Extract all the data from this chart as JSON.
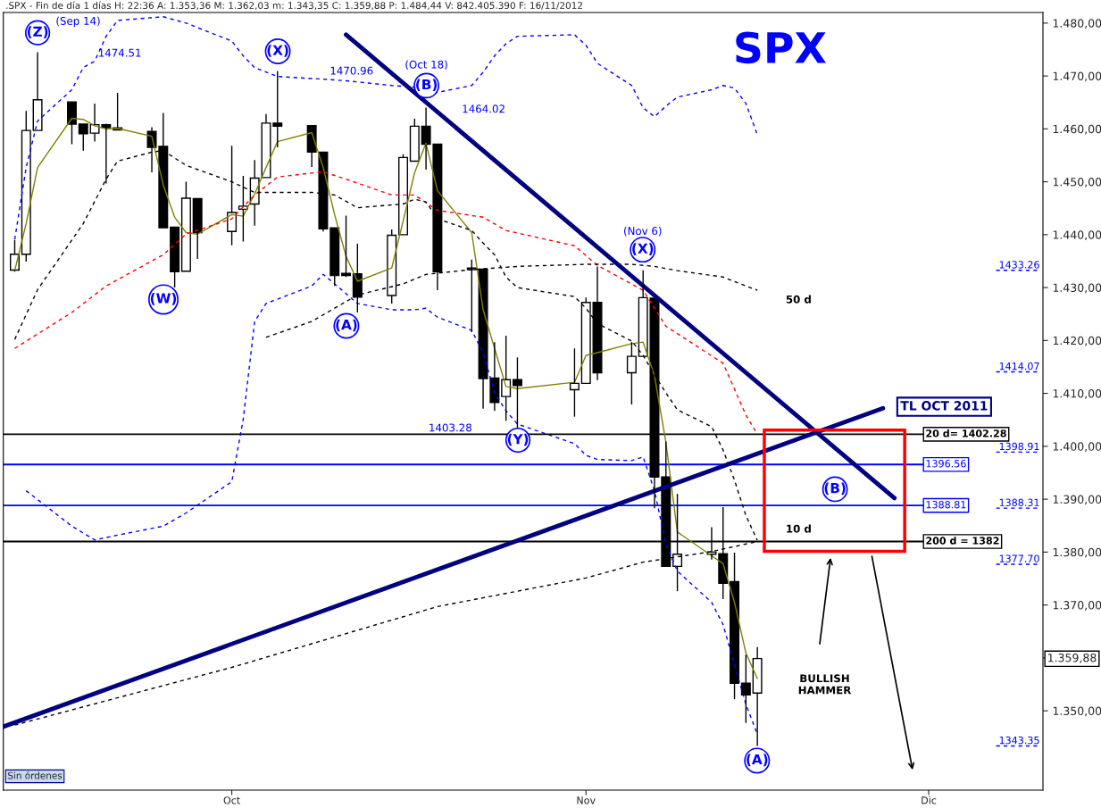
{
  "chart_data": {
    "type": "candlestick",
    "title": "SPX",
    "subtitle": ".SPX - Fin de día 1 días H: 22:36 A: 1.353,36 M: 1.362,03 m: 1.343,35 C: 1.359,88 P: 1.484,44 V: 842.405.390 F: 16/11/2012",
    "color": "#000000",
    "x": [
      "2012-09-12",
      "2012-09-13",
      "2012-09-14",
      "2012-09-17",
      "2012-09-18",
      "2012-09-19",
      "2012-09-20",
      "2012-09-21",
      "2012-09-24",
      "2012-09-25",
      "2012-09-26",
      "2012-09-27",
      "2012-09-28",
      "2012-10-01",
      "2012-10-02",
      "2012-10-03",
      "2012-10-04",
      "2012-10-05",
      "2012-10-08",
      "2012-10-09",
      "2012-10-10",
      "2012-10-11",
      "2012-10-12",
      "2012-10-15",
      "2012-10-16",
      "2012-10-17",
      "2012-10-18",
      "2012-10-19",
      "2012-10-22",
      "2012-10-23",
      "2012-10-24",
      "2012-10-25",
      "2012-10-26",
      "2012-10-31",
      "2012-11-01",
      "2012-11-02",
      "2012-11-05",
      "2012-11-06",
      "2012-11-07",
      "2012-11-08",
      "2012-11-09",
      "2012-11-12",
      "2012-11-13",
      "2012-11-14",
      "2012-11-15",
      "2012-11-16"
    ],
    "ohlc": [
      [
        1433.3,
        1439.0,
        1433.0,
        1436.3
      ],
      [
        1436.3,
        1463.4,
        1434.9,
        1459.7
      ],
      [
        1459.7,
        1474.51,
        1459.7,
        1465.5
      ],
      [
        1465.1,
        1465.1,
        1457.1,
        1460.9
      ],
      [
        1460.9,
        1460.9,
        1455.9,
        1459.1
      ],
      [
        1459.2,
        1464.8,
        1457.6,
        1460.8
      ],
      [
        1460.8,
        1461.0,
        1449.7,
        1460.2
      ],
      [
        1460.2,
        1466.8,
        1459.8,
        1459.8
      ],
      [
        1459.5,
        1460.3,
        1451.8,
        1456.5
      ],
      [
        1456.7,
        1463.0,
        1441.3,
        1441.3
      ],
      [
        1441.4,
        1441.4,
        1430.0,
        1433.0
      ],
      [
        1433.1,
        1450.0,
        1433.1,
        1446.9
      ],
      [
        1446.8,
        1446.8,
        1435.4,
        1440.4
      ],
      [
        1440.6,
        1456.8,
        1438.0,
        1444.2
      ],
      [
        1444.8,
        1451.1,
        1438.7,
        1445.4
      ],
      [
        1445.8,
        1454.1,
        1441.7,
        1450.7
      ],
      [
        1450.8,
        1462.8,
        1450.8,
        1461.1
      ],
      [
        1461.1,
        1470.96,
        1456.5,
        1460.5
      ],
      [
        1460.6,
        1460.6,
        1452.8,
        1455.6
      ],
      [
        1455.6,
        1455.6,
        1440.6,
        1441.1
      ],
      [
        1441.3,
        1441.3,
        1430.3,
        1432.3
      ],
      [
        1432.7,
        1443.6,
        1432.0,
        1432.3
      ],
      [
        1432.6,
        1438.3,
        1425.3,
        1428.2
      ],
      [
        1428.5,
        1441.0,
        1427.0,
        1439.9
      ],
      [
        1440.0,
        1455.2,
        1440.0,
        1454.6
      ],
      [
        1453.9,
        1461.9,
        1453.9,
        1460.5
      ],
      [
        1460.5,
        1464.02,
        1452.3,
        1457.1
      ],
      [
        1457.1,
        1457.1,
        1429.5,
        1433.0
      ],
      [
        1433.4,
        1435.3,
        1421.6,
        1433.7
      ],
      [
        1433.5,
        1433.5,
        1407.1,
        1412.8
      ],
      [
        1412.9,
        1419.7,
        1406.7,
        1408.3
      ],
      [
        1409.4,
        1420.9,
        1404.8,
        1412.6
      ],
      [
        1412.6,
        1416.8,
        1403.28,
        1411.5
      ],
      [
        1410.7,
        1418.5,
        1405.6,
        1411.9
      ],
      [
        1411.9,
        1428.1,
        1411.9,
        1427.2
      ],
      [
        1427.2,
        1434.0,
        1412.5,
        1413.9
      ],
      [
        1413.9,
        1419.7,
        1407.9,
        1417.0
      ],
      [
        1417.0,
        1433.26,
        1417.0,
        1428.1
      ],
      [
        1428.0,
        1428.0,
        1388.31,
        1394.2
      ],
      [
        1394.2,
        1400.9,
        1377.3,
        1377.3
      ],
      [
        1377.3,
        1391.0,
        1372.6,
        1379.6
      ],
      [
        1379.6,
        1384.7,
        1378.6,
        1380.0
      ],
      [
        1379.7,
        1388.5,
        1371.1,
        1374.1
      ],
      [
        1374.4,
        1379.9,
        1352.2,
        1355.2
      ],
      [
        1355.2,
        1360.6,
        1347.7,
        1353.0
      ],
      [
        1353.36,
        1362.03,
        1343.35,
        1359.88
      ]
    ],
    "series": [
      {
        "type": "line",
        "color": "#808000",
        "line_style": "solid",
        "x": [
          "2012-09-12",
          "2012-09-13",
          "2012-09-14",
          "2012-09-17",
          "2012-09-18",
          "2012-09-19",
          "2012-09-20",
          "2012-09-21",
          "2012-09-24",
          "2012-09-25",
          "2012-09-26",
          "2012-09-27",
          "2012-09-28",
          "2012-10-01",
          "2012-10-02",
          "2012-10-03",
          "2012-10-04",
          "2012-10-05",
          "2012-10-08",
          "2012-10-09",
          "2012-10-10",
          "2012-10-11",
          "2012-10-12",
          "2012-10-15",
          "2012-10-16",
          "2012-10-17",
          "2012-10-18",
          "2012-10-19",
          "2012-10-22",
          "2012-10-23",
          "2012-10-24",
          "2012-10-25",
          "2012-10-26",
          "2012-10-31",
          "2012-11-01",
          "2012-11-02",
          "2012-11-05",
          "2012-11-06",
          "2012-11-07",
          "2012-11-08",
          "2012-11-09",
          "2012-11-12",
          "2012-11-13",
          "2012-11-14",
          "2012-11-15",
          "2012-11-16"
        ],
        "values": [
          1433.2,
          1442.1,
          1452.7,
          1462.0,
          1461.8,
          1460.6,
          1460.0,
          1460.1,
          1458.6,
          1449.4,
          1443.3,
          1440.4,
          1440.1,
          1443.8,
          1443.5,
          1447.7,
          1452.7,
          1457.6,
          1459.3,
          1452.7,
          1443.8,
          1435.9,
          1431.2,
          1433.7,
          1442.6,
          1451.7,
          1457.3,
          1448.3,
          1440.4,
          1425.8,
          1418.5,
          1411.3,
          1410.9,
          1412.1,
          1417.2,
          1417.7,
          1419.4,
          1419.7,
          1413.3,
          1400.7,
          1383.8,
          1379.3,
          1377.8,
          1370.5,
          1360.9,
          1356.1
        ]
      },
      {
        "type": "line",
        "color": "#0000ff",
        "line_style": "dashed",
        "x": [
          "2012-09-12",
          "2012-09-13",
          "2012-09-14",
          "2012-09-17",
          "2012-09-18",
          "2012-09-19",
          "2012-09-20",
          "2012-09-21",
          "2012-09-25",
          "2012-09-27",
          "2012-10-01",
          "2012-10-02",
          "2012-10-03",
          "2012-10-05",
          "2012-10-09",
          "2012-10-11",
          "2012-10-15",
          "2012-10-17",
          "2012-10-19",
          "2012-10-22",
          "2012-10-23",
          "2012-10-24",
          "2012-10-25",
          "2012-10-26",
          "2012-10-31",
          "2012-11-01",
          "2012-11-02",
          "2012-11-05",
          "2012-11-06",
          "2012-11-07",
          "2012-11-08",
          "2012-11-09",
          "2012-11-12",
          "2012-11-13",
          "2012-11-14",
          "2012-11-15",
          "2012-11-16"
        ],
        "values": [
          1439.1,
          1452.7,
          1461.5,
          1467.4,
          1471.6,
          1472.8,
          1477.5,
          1480.5,
          1481.2,
          1480.0,
          1476.6,
          1473.8,
          1471.6,
          1469.9,
          1469.4,
          1469.1,
          1468.2,
          1467.9,
          1466.9,
          1468.2,
          1470.7,
          1473.8,
          1476.1,
          1477.5,
          1477.8,
          1475.8,
          1472.4,
          1468.2,
          1464.0,
          1462.3,
          1464.3,
          1466.0,
          1467.4,
          1468.2,
          1467.7,
          1464.8,
          1458.9
        ]
      },
      {
        "type": "line",
        "color": "#0000ff",
        "line_style": "dashed",
        "x": [
          "2012-09-13",
          "2012-09-17",
          "2012-09-19",
          "2012-09-21",
          "2012-09-25",
          "2012-09-27",
          "2012-10-01",
          "2012-10-02",
          "2012-10-03",
          "2012-10-04",
          "2012-10-08",
          "2012-10-09",
          "2012-10-10",
          "2012-10-12",
          "2012-10-15",
          "2012-10-17",
          "2012-10-18",
          "2012-10-19",
          "2012-10-22",
          "2012-10-23",
          "2012-10-24",
          "2012-10-25",
          "2012-10-26",
          "2012-10-31",
          "2012-11-01",
          "2012-11-02",
          "2012-11-05",
          "2012-11-06",
          "2012-11-07",
          "2012-11-08",
          "2012-11-09",
          "2012-11-12",
          "2012-11-13",
          "2012-11-14",
          "2012-11-15",
          "2012-11-16"
        ],
        "values": [
          1391.6,
          1384.9,
          1382.3,
          1383.2,
          1384.9,
          1387.4,
          1393.3,
          1405.1,
          1423.6,
          1427.0,
          1430.3,
          1432.5,
          1430.7,
          1427.0,
          1425.8,
          1425.8,
          1426.1,
          1424.4,
          1421.9,
          1417.7,
          1410.1,
          1406.7,
          1404.2,
          1400.5,
          1398.3,
          1397.5,
          1397.3,
          1398.0,
          1391.6,
          1381.5,
          1376.4,
          1370.5,
          1366.3,
          1358.7,
          1351.2,
          1345.6
        ]
      },
      {
        "type": "line",
        "color": "#ff0000",
        "line_style": "dashed",
        "x": [
          "2012-09-12",
          "2012-09-17",
          "2012-09-20",
          "2012-09-25",
          "2012-09-27",
          "2012-10-01",
          "2012-10-03",
          "2012-10-05",
          "2012-10-09",
          "2012-10-11",
          "2012-10-15",
          "2012-10-17",
          "2012-10-19",
          "2012-10-23",
          "2012-10-25",
          "2012-10-31",
          "2012-11-02",
          "2012-11-06",
          "2012-11-08",
          "2012-11-13",
          "2012-11-15",
          "2012-11-16"
        ],
        "values": [
          1418.5,
          1425.3,
          1430.3,
          1436.2,
          1440.1,
          1443.0,
          1447.5,
          1450.9,
          1451.9,
          1450.5,
          1447.5,
          1447.5,
          1444.6,
          1443.3,
          1440.8,
          1437.9,
          1434.2,
          1429.5,
          1422.7,
          1415.7,
          1405.9,
          1402.3
        ]
      },
      {
        "type": "line",
        "color": "#000000",
        "line_style": "dashed",
        "x": [
          "2012-09-12",
          "2012-09-14",
          "2012-09-18",
          "2012-09-20",
          "2012-09-21",
          "2012-09-24",
          "2012-09-25",
          "2012-09-27",
          "2012-10-01",
          "2012-10-03",
          "2012-10-08",
          "2012-10-10",
          "2012-10-12",
          "2012-10-16",
          "2012-10-17",
          "2012-10-18",
          "2012-10-19",
          "2012-10-22",
          "2012-10-23",
          "2012-10-24",
          "2012-10-25",
          "2012-10-26",
          "2012-10-31",
          "2012-11-01",
          "2012-11-02",
          "2012-11-05",
          "2012-11-06",
          "2012-11-07",
          "2012-11-08",
          "2012-11-09",
          "2012-11-12",
          "2012-11-13",
          "2012-11-14",
          "2012-11-15",
          "2012-11-16"
        ],
        "values": [
          1420.2,
          1429.6,
          1442.1,
          1450.5,
          1453.9,
          1455.6,
          1455.9,
          1453.1,
          1450.0,
          1448.0,
          1448.0,
          1447.5,
          1445.1,
          1445.8,
          1446.7,
          1446.2,
          1443.0,
          1440.8,
          1438.4,
          1436.2,
          1432.0,
          1430.0,
          1428.3,
          1426.1,
          1423.2,
          1419.9,
          1417.2,
          1413.5,
          1410.1,
          1406.9,
          1403.7,
          1399.3,
          1393.6,
          1386.9,
          1382.2
        ]
      },
      {
        "type": "line",
        "color": "#000000",
        "line_style": "dashed",
        "x": [
          "2012-10-04",
          "2012-10-08",
          "2012-10-10",
          "2012-10-12",
          "2012-10-16",
          "2012-10-18",
          "2012-10-22",
          "2012-10-24",
          "2012-10-26",
          "2012-11-01",
          "2012-11-05",
          "2012-11-07",
          "2012-11-09",
          "2012-11-13",
          "2012-11-15",
          "2012-11-16"
        ],
        "values": [
          1420.6,
          1423.6,
          1426.1,
          1428.6,
          1430.7,
          1432.5,
          1433.4,
          1433.7,
          1434.0,
          1434.4,
          1434.4,
          1434.0,
          1433.2,
          1432.0,
          1430.3,
          1429.5
        ]
      },
      {
        "type": "line",
        "color": "#000000",
        "line_style": "dashed",
        "x": [
          "2012-09-12",
          "2012-10-01",
          "2012-10-19",
          "2012-11-01",
          "2012-11-06",
          "2012-11-12",
          "2012-11-16"
        ],
        "values": [
          1347.3,
          1358.2,
          1369.7,
          1375.1,
          1378.1,
          1380.1,
          1382.0
        ]
      },
      {
        "type": "line",
        "color": "#000080",
        "line_style": "solid",
        "x": [
          "2012-09-11",
          "2012-11-27"
        ],
        "values": [
          1347.0,
          1407.2
        ]
      },
      {
        "type": "line",
        "color": "#000080",
        "line_style": "solid",
        "x": [
          "2012-10-11",
          "2012-11-28"
        ],
        "values": [
          1477.8,
          1390.2
        ]
      }
    ],
    "ref_lines": [
      {
        "axis": "y",
        "value": 1396.56,
        "label": "1396.56",
        "color": "#0000ff",
        "line_style": "solid"
      },
      {
        "axis": "y",
        "value": 1388.81,
        "label": "1388.81",
        "color": "#0000ff",
        "line_style": "solid"
      },
      {
        "axis": "y",
        "value": 1402.28,
        "label": "20 d= 1402.28",
        "color": "#000000",
        "line_style": "solid"
      },
      {
        "axis": "y",
        "value": 1382,
        "label": "200 d = 1382",
        "color": "#000000",
        "line_style": "solid"
      },
      {
        "axis": "y",
        "value": 1433.26,
        "label": "1433.26",
        "color": "#0000ff",
        "line_style": "dashed"
      },
      {
        "axis": "y",
        "value": 1414.07,
        "label": "1414.07",
        "color": "#0000ff",
        "line_style": "dashed"
      },
      {
        "axis": "y",
        "value": 1398.91,
        "label": "1398.91",
        "color": "#0000ff",
        "line_style": "dashed"
      },
      {
        "axis": "y",
        "value": 1388.31,
        "label": "1388.31",
        "color": "#0000ff",
        "line_style": "dashed"
      },
      {
        "axis": "y",
        "value": 1377.7,
        "label": "1377.70",
        "color": "#0000ff",
        "line_style": "dashed"
      },
      {
        "axis": "y",
        "value": 1343.35,
        "label": "1343.35",
        "color": "#0000ff",
        "line_style": "dashed"
      }
    ],
    "annotations": [
      "(Sep 14)",
      "(Z)",
      "1474.51",
      "(X)",
      "1470.96",
      "(Oct 18)",
      "(B)",
      "1464.02",
      "(W)",
      "(A)",
      "1403.28",
      "(Y)",
      "(Nov 6)",
      "(X)",
      "50 d",
      "10 d",
      "(B)",
      "(A)",
      "BULLISH\nHAMMER",
      "TL OCT 2011",
      "1.359,88",
      "Sin órdenes"
    ],
    "xlim": [
      "2012-09-11",
      "2012-12-11"
    ],
    "xticks": [
      {
        "value": "2012-10-01",
        "label": "Oct"
      },
      {
        "value": "2012-11-01",
        "label": "Nov"
      },
      {
        "value": "2012-12-01",
        "label": "Dic"
      }
    ],
    "ylim": [
      1335,
      1482
    ],
    "yticks": [
      {
        "value": 1350,
        "label": "1.350,00"
      },
      {
        "value": 1360,
        "label": null
      },
      {
        "value": 1370,
        "label": "1.370,00"
      },
      {
        "value": 1380,
        "label": "1.380,00"
      },
      {
        "value": 1390,
        "label": "1.390,00"
      },
      {
        "value": 1400,
        "label": "1.400,00"
      },
      {
        "value": 1410,
        "label": "1.410,00"
      },
      {
        "value": 1420,
        "label": "1.420,00"
      },
      {
        "value": 1430,
        "label": "1.430,00"
      },
      {
        "value": 1440,
        "label": "1.440,00"
      },
      {
        "value": 1450,
        "label": "1.450,00"
      },
      {
        "value": 1460,
        "label": "1.460,00"
      },
      {
        "value": 1470,
        "label": "1.470,00"
      },
      {
        "value": 1480,
        "label": "1.480,00"
      }
    ],
    "grid": false,
    "legend": false
  }
}
